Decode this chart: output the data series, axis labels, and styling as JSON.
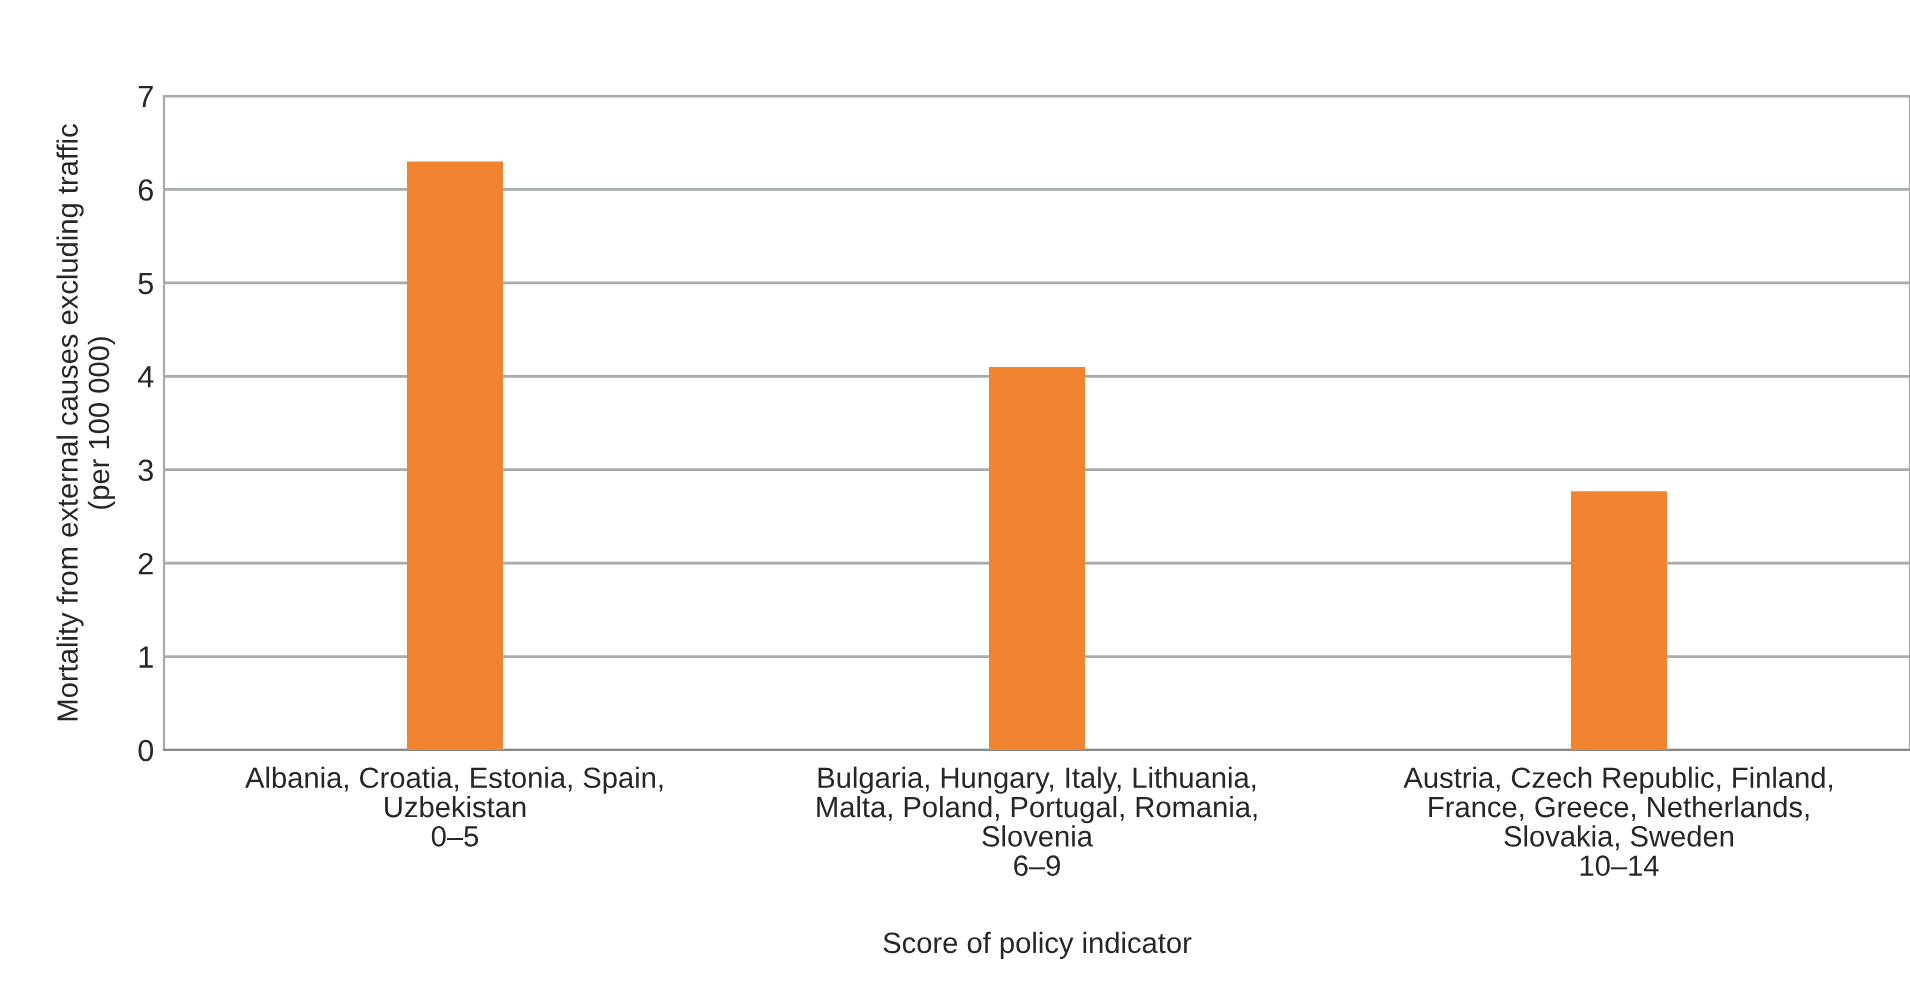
{
  "chart_data": {
    "type": "bar",
    "xlabel": "Score of policy indicator",
    "ylabel": "Mortality from external causes excluding traffic\n(per 100 000)",
    "categories": [
      "Albania, Croatia, Estonia, Spain,\nUzbekistan\n0–5",
      "Bulgaria, Hungary, Italy, Lithuania,\nMalta, Poland, Portugal, Romania,\nSlovenia\n6–9",
      "Austria, Czech Republic, Finland,\nFrance, Greece, Netherlands,\nSlovakia, Sweden\n10–14"
    ],
    "values": [
      6.3,
      4.1,
      2.77
    ],
    "color": "#f0832f",
    "ylim": [
      0,
      7
    ],
    "yticks": [
      0,
      1,
      2,
      3,
      4,
      5,
      6,
      7
    ],
    "grid": "y"
  }
}
